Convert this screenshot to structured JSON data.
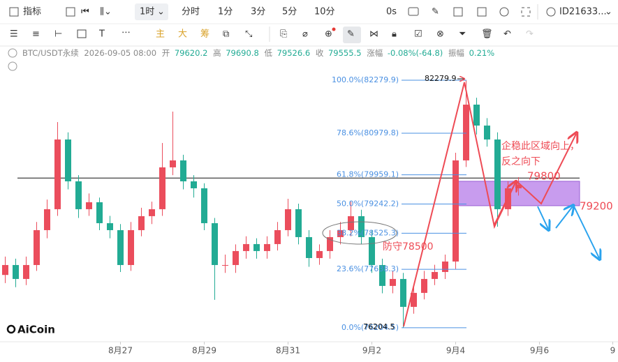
{
  "toolbar": {
    "indicator": "指标",
    "interval": "1时",
    "intervals": [
      "分时",
      "1分",
      "3分",
      "5分",
      "10分"
    ],
    "timer": "0s",
    "account": "ID21633..."
  },
  "drawing_toolbar": {
    "buttons": [
      "主",
      "大",
      "筹"
    ]
  },
  "info_bar": {
    "symbol": "BTC/USDT永续",
    "datetime": "2026-09-05 08:00",
    "open_label": "开",
    "open": 79620.2,
    "high_label": "高",
    "high": 79690.8,
    "low_label": "低",
    "low": 79526.6,
    "close_label": "收",
    "close": 79555.5,
    "change_label": "涨幅",
    "change": "-0.08%(-64.8)",
    "amplitude_label": "振幅",
    "amplitude": "0.21%"
  },
  "logo": "AiCoin",
  "chart_data": {
    "type": "candlestick",
    "candles": [
      [
        77500,
        77950,
        77300,
        77744
      ],
      [
        77744,
        77900,
        77200,
        77402
      ],
      [
        77402,
        77950,
        77250,
        77744
      ],
      [
        77744,
        78800,
        77600,
        78600
      ],
      [
        78600,
        79350,
        78400,
        79114
      ],
      [
        79114,
        81253,
        78950,
        80825
      ],
      [
        80825,
        81000,
        79600,
        79798
      ],
      [
        79798,
        79950,
        78900,
        79114
      ],
      [
        79114,
        79500,
        78950,
        79285
      ],
      [
        79285,
        79400,
        78600,
        78771
      ],
      [
        78771,
        78950,
        78400,
        78600
      ],
      [
        78600,
        78750,
        77573,
        77744
      ],
      [
        77744,
        78800,
        77600,
        78600
      ],
      [
        78600,
        79150,
        78450,
        78943
      ],
      [
        78943,
        79300,
        78750,
        79114
      ],
      [
        79114,
        80739,
        78950,
        80141
      ],
      [
        80141,
        81510,
        79950,
        80312
      ],
      [
        80312,
        80450,
        79600,
        79798
      ],
      [
        79798,
        79950,
        79400,
        79627
      ],
      [
        79627,
        79750,
        78600,
        78771
      ],
      [
        78771,
        78900,
        76889,
        77744
      ],
      [
        77744,
        78000,
        77550,
        77744
      ],
      [
        77744,
        78250,
        77550,
        78087
      ],
      [
        78087,
        78450,
        77900,
        78258
      ],
      [
        78258,
        78400,
        77900,
        78087
      ],
      [
        78087,
        78450,
        77900,
        78258
      ],
      [
        78258,
        78800,
        78100,
        78600
      ],
      [
        78600,
        79370,
        78450,
        79114
      ],
      [
        79114,
        79250,
        78250,
        78429
      ],
      [
        78429,
        78600,
        77700,
        77915
      ],
      [
        77915,
        78250,
        77750,
        78087
      ],
      [
        78087,
        78600,
        77900,
        78429
      ],
      [
        78429,
        78800,
        78250,
        78600
      ],
      [
        78600,
        79300,
        78450,
        78943
      ],
      [
        78943,
        79100,
        78250,
        78429
      ],
      [
        78429,
        78600,
        77550,
        77744
      ],
      [
        77744,
        77900,
        77050,
        77231
      ],
      [
        77231,
        77600,
        77050,
        77402
      ],
      [
        77402,
        77550,
        76205,
        76717
      ],
      [
        76717,
        77250,
        76550,
        77060
      ],
      [
        77060,
        77600,
        76900,
        77402
      ],
      [
        77402,
        77750,
        77250,
        77573
      ],
      [
        77573,
        78000,
        77400,
        77830
      ],
      [
        77830,
        80500,
        77650,
        80312
      ],
      [
        80312,
        82280,
        80150,
        81681
      ],
      [
        81681,
        81850,
        80950,
        81167
      ],
      [
        81167,
        81350,
        80650,
        80825
      ],
      [
        80825,
        81000,
        78686,
        79114
      ],
      [
        79114,
        79800,
        78950,
        79627
      ],
      [
        79627,
        79900,
        79450,
        79713
      ]
    ],
    "up_color": "#eb4d5c",
    "down_color": "#22ab94",
    "ylim": [
      75860,
      83085
    ],
    "xlim": [
      -0.5,
      58.5
    ],
    "xticks": [
      {
        "value": 11,
        "label": "8月27"
      },
      {
        "value": 19,
        "label": "8月29"
      },
      {
        "value": 27,
        "label": "8月31"
      },
      {
        "value": 35,
        "label": "9月2"
      },
      {
        "value": 43,
        "label": "9月4"
      },
      {
        "value": 51,
        "label": "9月6"
      },
      {
        "value": 58,
        "label": "9"
      }
    ],
    "fib_levels": [
      {
        "value": 82279.9,
        "label": "100.0%(82279.9)"
      },
      {
        "value": 80979.8,
        "label": "78.6%(80979.8)"
      },
      {
        "value": 79959.1,
        "label": "61.8%(79959.1)"
      },
      {
        "value": 79242.2,
        "label": "50.0%(79242.2)"
      },
      {
        "value": 78525.3,
        "label": "38.2%(78525.3)"
      },
      {
        "value": 77638.3,
        "label": "23.6%(77638.3)"
      },
      {
        "value": 76204.5,
        "label": "0.0%(76204.5)"
      }
    ],
    "horizontal_line": 79880,
    "zone": [
      {
        "value": 79800,
        "label": "79800"
      },
      {
        "value": 79200,
        "label": "79200"
      }
    ],
    "high_marker": 82279.9,
    "low_marker": 76204.5,
    "annotations": [
      "企稳此区域向上，",
      "反之向下",
      "防守78500"
    ]
  }
}
